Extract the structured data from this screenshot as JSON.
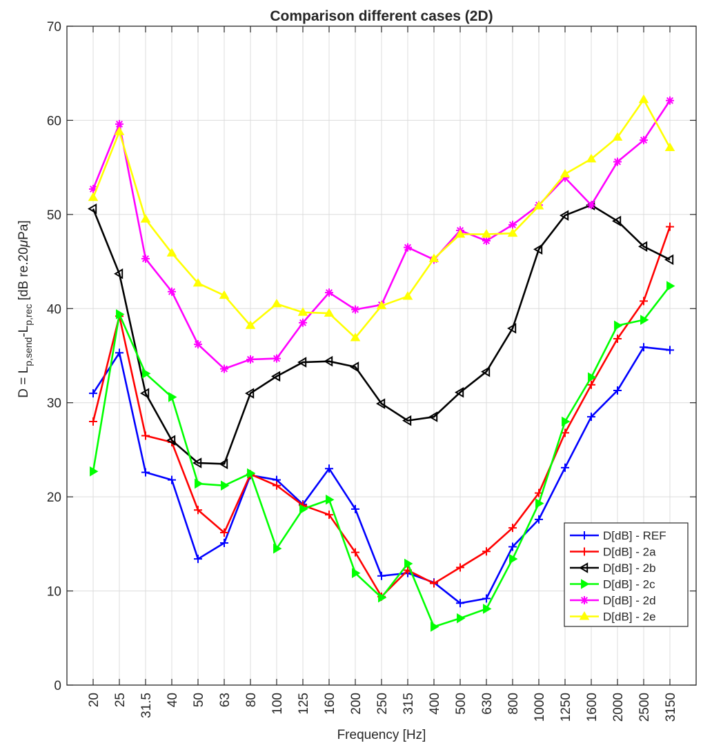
{
  "chart_data": {
    "type": "line",
    "title": "Comparison different cases (2D)",
    "xlabel": "Frequency [Hz]",
    "ylabel": {
      "prefix": "D = L",
      "sub1": "p,send",
      "middle": "-L",
      "sub2": "p,rec",
      "suffix_a": " [dB re.20",
      "mu": "μ",
      "suffix_b": "Pa]"
    },
    "categories": [
      "20",
      "25",
      "31.5",
      "40",
      "50",
      "63",
      "80",
      "100",
      "125",
      "160",
      "200",
      "250",
      "315",
      "400",
      "500",
      "630",
      "800",
      "1000",
      "1250",
      "1600",
      "2000",
      "2500",
      "3150"
    ],
    "ylim": [
      0,
      70
    ],
    "yticks": [
      0,
      10,
      20,
      30,
      40,
      50,
      60,
      70
    ],
    "grid": true,
    "legend_position": "bottom-right",
    "series": [
      {
        "name": "D[dB] - REF",
        "color": "#0000ff",
        "marker": "plus",
        "values": [
          31.0,
          35.3,
          22.6,
          21.8,
          13.4,
          15.1,
          22.3,
          21.8,
          19.2,
          23.0,
          18.7,
          11.6,
          11.9,
          10.9,
          8.7,
          9.2,
          14.7,
          17.6,
          23.1,
          28.5,
          31.3,
          35.9,
          35.6
        ]
      },
      {
        "name": "D[dB] - 2a",
        "color": "#ff0000",
        "marker": "plus",
        "values": [
          28.0,
          39.2,
          26.5,
          25.8,
          18.6,
          16.2,
          22.4,
          21.2,
          19.1,
          18.1,
          14.1,
          9.4,
          12.2,
          10.8,
          12.5,
          14.2,
          16.7,
          20.4,
          26.8,
          31.9,
          36.8,
          40.8,
          48.7
        ]
      },
      {
        "name": "D[dB] - 2b",
        "color": "#000000",
        "marker": "triangle-left",
        "values": [
          50.6,
          43.7,
          31.0,
          26.0,
          23.6,
          23.5,
          31.0,
          32.8,
          34.3,
          34.4,
          33.8,
          29.9,
          28.1,
          28.5,
          31.1,
          33.3,
          37.9,
          46.3,
          49.9,
          51.0,
          49.3,
          46.6,
          45.2
        ]
      },
      {
        "name": "D[dB] - 2c",
        "color": "#00ff00",
        "marker": "triangle-right",
        "values": [
          22.7,
          39.4,
          33.1,
          30.6,
          21.4,
          21.2,
          22.5,
          14.5,
          18.7,
          19.7,
          11.9,
          9.3,
          12.9,
          6.2,
          7.1,
          8.1,
          13.4,
          19.3,
          28.0,
          32.7,
          38.2,
          38.8,
          42.4
        ]
      },
      {
        "name": "D[dB] - 2d",
        "color": "#ff00ff",
        "marker": "asterisk",
        "values": [
          52.7,
          59.6,
          45.3,
          41.8,
          36.2,
          33.6,
          34.6,
          34.7,
          38.5,
          41.7,
          39.9,
          40.4,
          46.5,
          45.2,
          48.3,
          47.2,
          48.9,
          51.0,
          53.9,
          51.0,
          55.6,
          57.9,
          62.1
        ]
      },
      {
        "name": "D[dB] - 2e",
        "color": "#ffff00",
        "marker": "triangle-up",
        "values": [
          51.8,
          58.8,
          49.5,
          45.9,
          42.7,
          41.4,
          38.2,
          40.5,
          39.6,
          39.5,
          36.9,
          40.3,
          41.3,
          45.3,
          47.9,
          47.9,
          48.0,
          50.9,
          54.3,
          55.9,
          58.2,
          62.2,
          57.1
        ]
      }
    ]
  }
}
